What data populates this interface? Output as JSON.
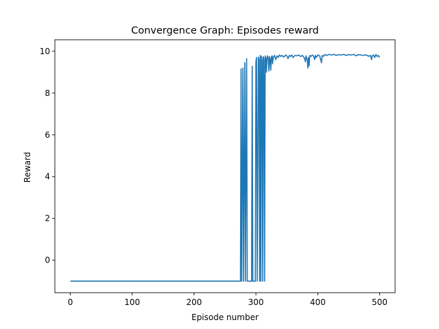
{
  "chart_data": {
    "type": "line",
    "title": "Convergence Graph: Episodes reward",
    "xlabel": "Episode number",
    "ylabel": "Reward",
    "xlim": [
      -25,
      525
    ],
    "ylim": [
      -1.55,
      10.55
    ],
    "xticks": [
      0,
      100,
      200,
      300,
      400,
      500
    ],
    "yticks": [
      0,
      2,
      4,
      6,
      8,
      10
    ],
    "grid": false,
    "legend": "none",
    "series": [
      {
        "color": "#1f77b4",
        "points": [
          [
            0,
            -1
          ],
          [
            275,
            -1
          ],
          [
            276,
            9.15
          ],
          [
            277,
            -1
          ],
          [
            279,
            9.2
          ],
          [
            280,
            -1
          ],
          [
            282,
            9.45
          ],
          [
            283,
            -1
          ],
          [
            285,
            9.65
          ],
          [
            286,
            -1
          ],
          [
            293,
            -1
          ],
          [
            294,
            9.28
          ],
          [
            295,
            -1
          ],
          [
            299,
            -1
          ],
          [
            300,
            9.5
          ],
          [
            301,
            9.7
          ],
          [
            302,
            -1
          ],
          [
            304,
            9.72
          ],
          [
            305,
            9.6
          ],
          [
            306,
            -1
          ],
          [
            307,
            9.8
          ],
          [
            308,
            -1
          ],
          [
            309,
            9.76
          ],
          [
            310,
            9.55
          ],
          [
            311,
            -1
          ],
          [
            312,
            9.74
          ],
          [
            313,
            9.6
          ],
          [
            314,
            -1
          ],
          [
            315,
            9.78
          ],
          [
            316,
            9.65
          ],
          [
            317,
            9.0
          ],
          [
            318,
            9.7
          ],
          [
            319,
            9.78
          ],
          [
            320,
            9.62
          ],
          [
            321,
            9.05
          ],
          [
            322,
            9.75
          ],
          [
            323,
            9.6
          ],
          [
            324,
            9.1
          ],
          [
            325,
            9.7
          ],
          [
            326,
            9.78
          ],
          [
            327,
            9.4
          ],
          [
            328,
            9.72
          ],
          [
            330,
            9.8
          ],
          [
            332,
            9.6
          ],
          [
            334,
            9.78
          ],
          [
            336,
            9.7
          ],
          [
            338,
            9.82
          ],
          [
            340,
            9.75
          ],
          [
            342,
            9.8
          ],
          [
            345,
            9.72
          ],
          [
            348,
            9.82
          ],
          [
            350,
            9.78
          ],
          [
            352,
            9.65
          ],
          [
            354,
            9.8
          ],
          [
            356,
            9.75
          ],
          [
            358,
            9.82
          ],
          [
            360,
            9.7
          ],
          [
            363,
            9.8
          ],
          [
            366,
            9.78
          ],
          [
            369,
            9.82
          ],
          [
            372,
            9.75
          ],
          [
            375,
            9.8
          ],
          [
            378,
            9.7
          ],
          [
            380,
            9.5
          ],
          [
            381,
            9.78
          ],
          [
            383,
            9.6
          ],
          [
            384,
            9.2
          ],
          [
            385,
            9.7
          ],
          [
            386,
            9.3
          ],
          [
            387,
            9.8
          ],
          [
            389,
            9.75
          ],
          [
            391,
            9.82
          ],
          [
            393,
            9.78
          ],
          [
            395,
            9.6
          ],
          [
            396,
            9.8
          ],
          [
            398,
            9.7
          ],
          [
            400,
            9.83
          ],
          [
            403,
            9.78
          ],
          [
            406,
            9.45
          ],
          [
            407,
            9.8
          ],
          [
            409,
            9.75
          ],
          [
            411,
            9.84
          ],
          [
            414,
            9.8
          ],
          [
            418,
            9.85
          ],
          [
            422,
            9.82
          ],
          [
            426,
            9.85
          ],
          [
            430,
            9.8
          ],
          [
            434,
            9.84
          ],
          [
            438,
            9.82
          ],
          [
            442,
            9.85
          ],
          [
            446,
            9.8
          ],
          [
            450,
            9.84
          ],
          [
            454,
            9.82
          ],
          [
            458,
            9.85
          ],
          [
            462,
            9.78
          ],
          [
            466,
            9.84
          ],
          [
            470,
            9.82
          ],
          [
            474,
            9.8
          ],
          [
            478,
            9.83
          ],
          [
            482,
            9.76
          ],
          [
            485,
            9.8
          ],
          [
            487,
            9.6
          ],
          [
            488,
            9.78
          ],
          [
            490,
            9.82
          ],
          [
            492,
            9.7
          ],
          [
            494,
            9.85
          ],
          [
            496,
            9.75
          ],
          [
            498,
            9.8
          ],
          [
            500,
            9.7
          ]
        ]
      }
    ]
  }
}
